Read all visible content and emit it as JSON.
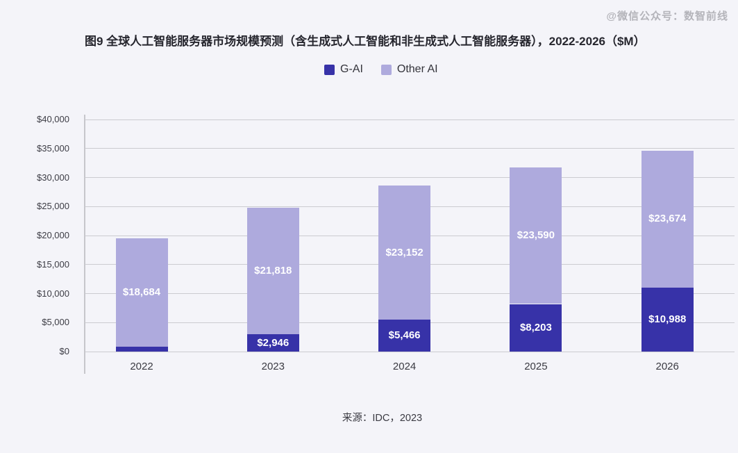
{
  "watermark": "@微信公众号：数智前线",
  "title": "图9 全球人工智能服务器市场规模预测（含生成式人工智能和非生成式人工智能服务器），2022-2026（$M）",
  "source": "来源：IDC，2023",
  "legend": [
    {
      "label": "G-AI",
      "color": "#3732a8"
    },
    {
      "label": "Other AI",
      "color": "#aeaadd"
    }
  ],
  "chart_data": {
    "type": "bar",
    "stacked": true,
    "title": "图9 全球人工智能服务器市场规模预测（含生成式人工智能和非生成式人工智能服务器），2022-2026（$M）",
    "categories": [
      "2022",
      "2023",
      "2024",
      "2025",
      "2026"
    ],
    "series": [
      {
        "name": "G-AI",
        "color": "#3732a8",
        "values": [
          819,
          2946,
          5466,
          8203,
          10988
        ],
        "labels": [
          "$819",
          "$2,946",
          "$5,466",
          "$8,203",
          "$10,988"
        ]
      },
      {
        "name": "Other AI",
        "color": "#aeaadd",
        "values": [
          18684,
          21818,
          23152,
          23590,
          23674
        ],
        "labels": [
          "$18,684",
          "$21,818",
          "$23,152",
          "$23,590",
          "$23,674"
        ]
      }
    ],
    "totals": [
      19503,
      24764,
      28618,
      31793,
      34662
    ],
    "xlabel": "",
    "ylabel": "",
    "ylim": [
      0,
      40000
    ],
    "ytick_step": 5000,
    "ytick_labels": [
      "$0",
      "$5,000",
      "$10,000",
      "$15,000",
      "$20,000",
      "$25,000",
      "$30,000",
      "$35,000",
      "$40,000"
    ],
    "grid": true,
    "legend_position": "top-center",
    "background": "#f4f4f9"
  }
}
